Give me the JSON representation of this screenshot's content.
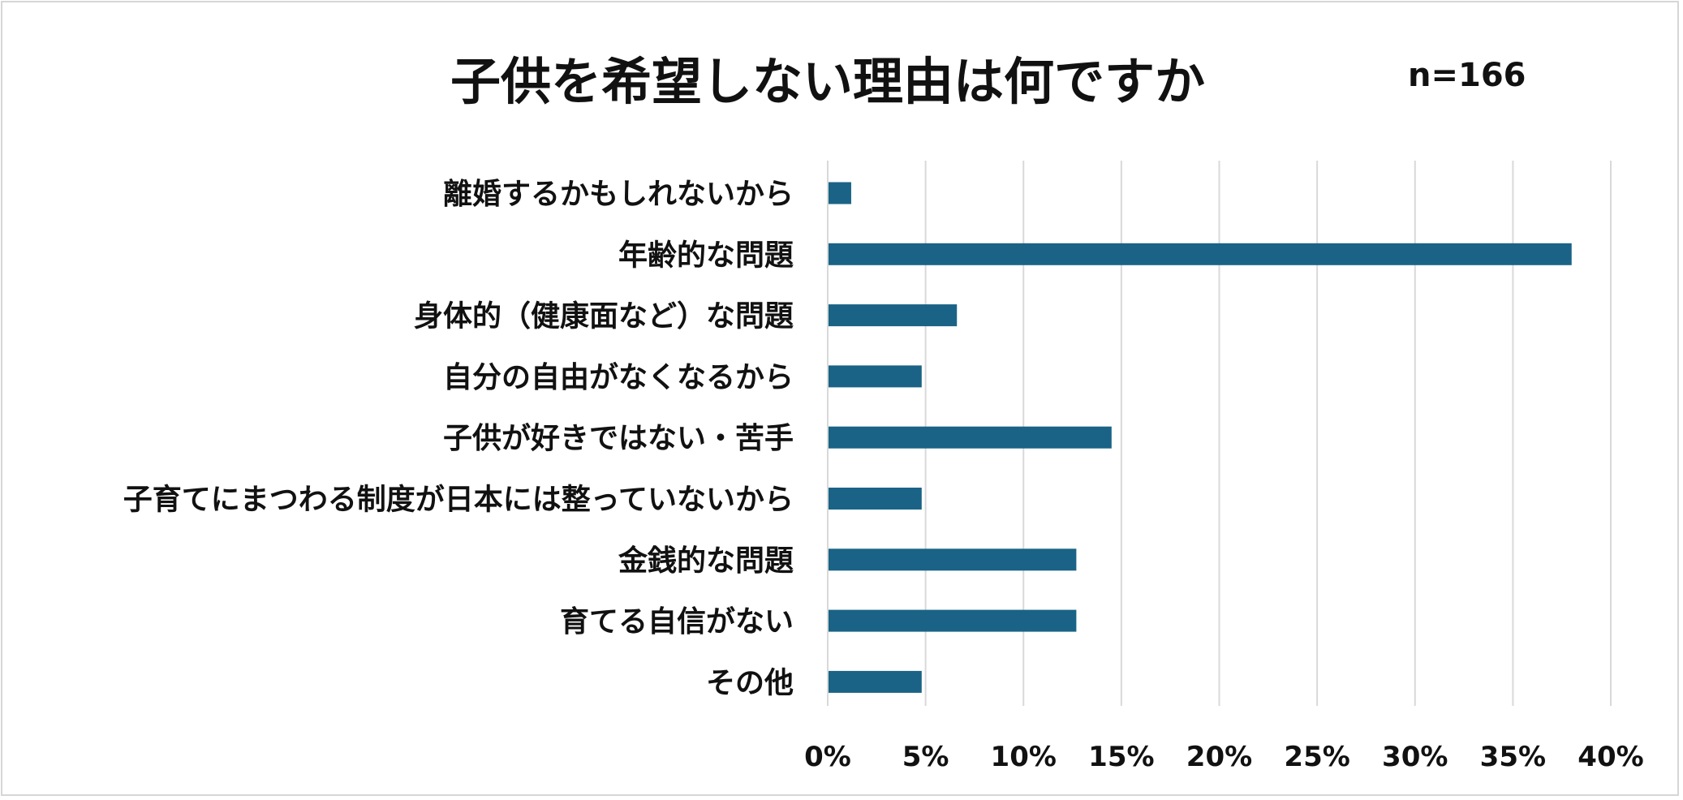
{
  "chart_data": {
    "type": "bar",
    "orientation": "horizontal",
    "title": "子供を希望しない理由は何ですか",
    "annotation": "n=166",
    "categories": [
      "離婚するかもしれないから",
      "年齢的な問題",
      "身体的（健康面など）な問題",
      "自分の自由がなくなるから",
      "子供が好きではない・苦手",
      "子育てにまつわる制度が日本には整っていないから",
      "金銭的な問題",
      "育てる自信がない",
      "その他"
    ],
    "values": [
      1.2,
      38.0,
      6.6,
      4.8,
      14.5,
      4.8,
      12.7,
      12.7,
      4.8
    ],
    "xlim": [
      0,
      40
    ],
    "xticks": [
      "0%",
      "5%",
      "10%",
      "15%",
      "20%",
      "25%",
      "30%",
      "35%",
      "40%"
    ],
    "bar_color": "#1a6386",
    "grid_color": "#d9d9d9",
    "grid": true,
    "legend": "none"
  }
}
